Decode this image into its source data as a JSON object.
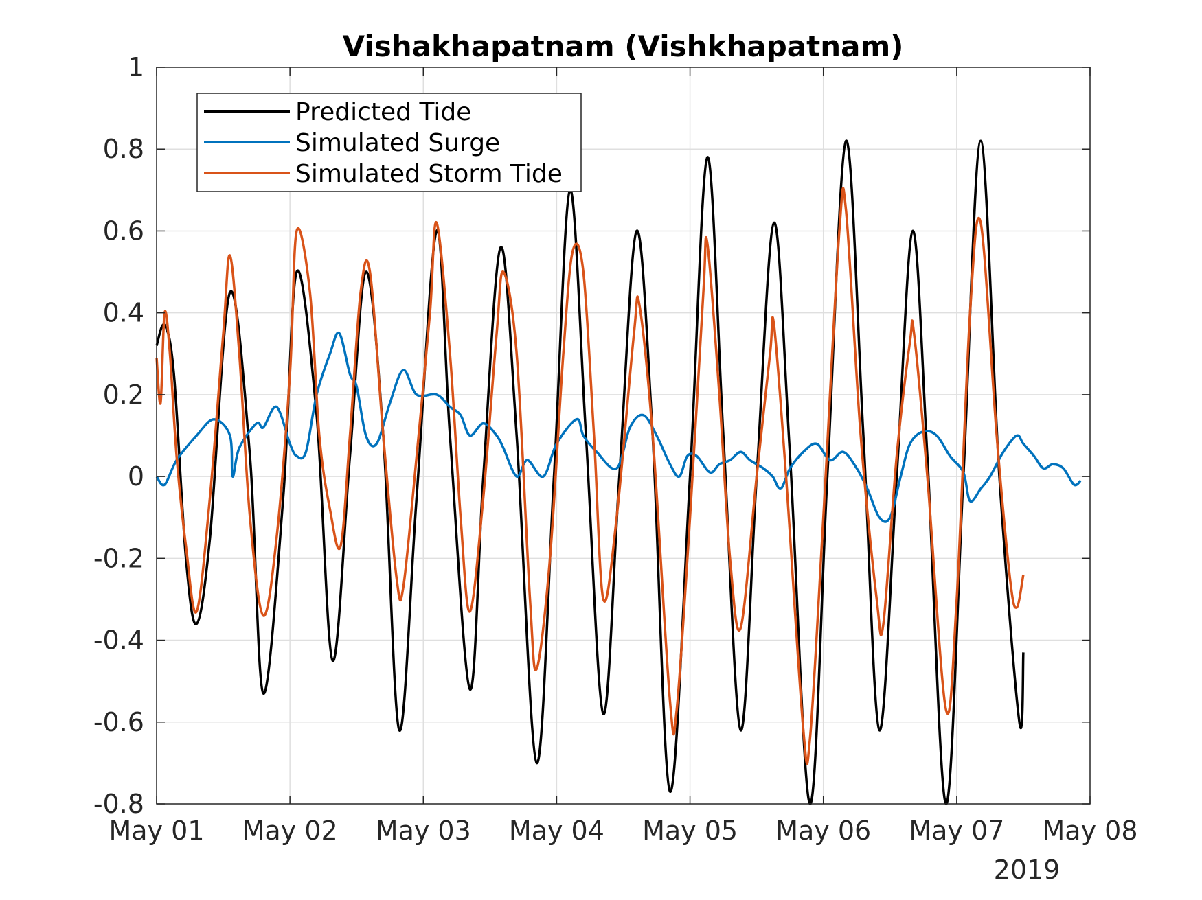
{
  "chart_data": {
    "type": "line",
    "title": "Vishakhapatnam (Vishkhapatnam)",
    "xlabel": "",
    "ylabel": "",
    "x_tick_labels": [
      "May 01",
      "May 02",
      "May 03",
      "May 04",
      "May 05",
      "May 06",
      "May 07",
      "May 08"
    ],
    "x_secondary_label": "2019",
    "x_range_days": [
      0,
      7
    ],
    "ylim": [
      -0.8,
      1
    ],
    "y_ticks": [
      -0.8,
      -0.6,
      -0.4,
      -0.2,
      0,
      0.2,
      0.4,
      0.6,
      0.8,
      1
    ],
    "y_tick_labels": [
      "-0.8",
      "-0.6",
      "-0.4",
      "-0.2",
      "0",
      "0.2",
      "0.4",
      "0.6",
      "0.8",
      "1"
    ],
    "grid": true,
    "legend_position": "top-left",
    "series": [
      {
        "name": "Predicted Tide",
        "color": "#000000",
        "points": [
          [
            0.0,
            0.32
          ],
          [
            0.06,
            0.37
          ],
          [
            0.13,
            0.25
          ],
          [
            0.22,
            -0.2
          ],
          [
            0.3,
            -0.36
          ],
          [
            0.4,
            -0.15
          ],
          [
            0.55,
            0.45
          ],
          [
            0.7,
            0.05
          ],
          [
            0.8,
            -0.53
          ],
          [
            0.95,
            -0.05
          ],
          [
            1.05,
            0.5
          ],
          [
            1.2,
            0.15
          ],
          [
            1.32,
            -0.45
          ],
          [
            1.45,
            0.05
          ],
          [
            1.57,
            0.5
          ],
          [
            1.7,
            0.1
          ],
          [
            1.82,
            -0.62
          ],
          [
            1.95,
            -0.05
          ],
          [
            2.1,
            0.6
          ],
          [
            2.2,
            0.1
          ],
          [
            2.35,
            -0.52
          ],
          [
            2.45,
            0.0
          ],
          [
            2.58,
            0.56
          ],
          [
            2.7,
            0.1
          ],
          [
            2.85,
            -0.7
          ],
          [
            2.98,
            0.0
          ],
          [
            3.1,
            0.7
          ],
          [
            3.22,
            0.1
          ],
          [
            3.35,
            -0.58
          ],
          [
            3.47,
            0.0
          ],
          [
            3.6,
            0.6
          ],
          [
            3.72,
            0.1
          ],
          [
            3.85,
            -0.77
          ],
          [
            4.0,
            0.0
          ],
          [
            4.13,
            0.78
          ],
          [
            4.25,
            0.1
          ],
          [
            4.38,
            -0.62
          ],
          [
            4.5,
            0.0
          ],
          [
            4.63,
            0.62
          ],
          [
            4.75,
            0.05
          ],
          [
            4.9,
            -0.8
          ],
          [
            5.03,
            0.0
          ],
          [
            5.17,
            0.82
          ],
          [
            5.3,
            0.1
          ],
          [
            5.42,
            -0.62
          ],
          [
            5.55,
            0.0
          ],
          [
            5.67,
            0.6
          ],
          [
            5.78,
            0.05
          ],
          [
            5.92,
            -0.8
          ],
          [
            6.05,
            0.0
          ],
          [
            6.18,
            0.82
          ],
          [
            6.32,
            0.0
          ],
          [
            6.47,
            -0.6
          ],
          [
            6.5,
            -0.43
          ]
        ]
      },
      {
        "name": "Simulated Surge",
        "color": "#0072BD",
        "points": [
          [
            0.0,
            0.0
          ],
          [
            0.06,
            -0.02
          ],
          [
            0.15,
            0.04
          ],
          [
            0.3,
            0.1
          ],
          [
            0.43,
            0.14
          ],
          [
            0.55,
            0.1
          ],
          [
            0.57,
            0.0
          ],
          [
            0.62,
            0.07
          ],
          [
            0.75,
            0.13
          ],
          [
            0.8,
            0.12
          ],
          [
            0.9,
            0.17
          ],
          [
            1.0,
            0.08
          ],
          [
            1.05,
            0.05
          ],
          [
            1.12,
            0.06
          ],
          [
            1.2,
            0.2
          ],
          [
            1.3,
            0.3
          ],
          [
            1.37,
            0.35
          ],
          [
            1.45,
            0.25
          ],
          [
            1.5,
            0.22
          ],
          [
            1.57,
            0.1
          ],
          [
            1.65,
            0.08
          ],
          [
            1.75,
            0.18
          ],
          [
            1.85,
            0.26
          ],
          [
            1.95,
            0.2
          ],
          [
            2.1,
            0.2
          ],
          [
            2.2,
            0.17
          ],
          [
            2.28,
            0.15
          ],
          [
            2.35,
            0.1
          ],
          [
            2.45,
            0.13
          ],
          [
            2.55,
            0.1
          ],
          [
            2.6,
            0.07
          ],
          [
            2.7,
            0.0
          ],
          [
            2.78,
            0.04
          ],
          [
            2.9,
            0.0
          ],
          [
            3.0,
            0.08
          ],
          [
            3.15,
            0.14
          ],
          [
            3.2,
            0.1
          ],
          [
            3.3,
            0.06
          ],
          [
            3.45,
            0.02
          ],
          [
            3.55,
            0.12
          ],
          [
            3.65,
            0.15
          ],
          [
            3.75,
            0.1
          ],
          [
            3.85,
            0.03
          ],
          [
            3.92,
            0.0
          ],
          [
            3.98,
            0.05
          ],
          [
            4.05,
            0.05
          ],
          [
            4.15,
            0.01
          ],
          [
            4.22,
            0.03
          ],
          [
            4.3,
            0.04
          ],
          [
            4.38,
            0.06
          ],
          [
            4.45,
            0.04
          ],
          [
            4.55,
            0.02
          ],
          [
            4.62,
            0.0
          ],
          [
            4.68,
            -0.03
          ],
          [
            4.75,
            0.02
          ],
          [
            4.85,
            0.06
          ],
          [
            4.95,
            0.08
          ],
          [
            5.05,
            0.04
          ],
          [
            5.15,
            0.06
          ],
          [
            5.25,
            0.02
          ],
          [
            5.33,
            -0.03
          ],
          [
            5.42,
            -0.1
          ],
          [
            5.5,
            -0.1
          ],
          [
            5.58,
            0.0
          ],
          [
            5.65,
            0.08
          ],
          [
            5.75,
            0.11
          ],
          [
            5.85,
            0.1
          ],
          [
            5.95,
            0.05
          ],
          [
            6.05,
            0.01
          ],
          [
            6.1,
            -0.06
          ],
          [
            6.18,
            -0.03
          ],
          [
            6.25,
            0.0
          ],
          [
            6.35,
            0.06
          ],
          [
            6.45,
            0.1
          ],
          [
            6.5,
            0.08
          ],
          [
            6.58,
            0.05
          ],
          [
            6.65,
            0.02
          ],
          [
            6.72,
            0.03
          ],
          [
            6.8,
            0.02
          ],
          [
            6.88,
            -0.02
          ],
          [
            6.93,
            -0.01
          ]
        ]
      },
      {
        "name": "Simulated Storm Tide",
        "color": "#D95319",
        "points": [
          [
            0.0,
            0.29
          ],
          [
            0.03,
            0.18
          ],
          [
            0.06,
            0.4
          ],
          [
            0.1,
            0.3
          ],
          [
            0.15,
            0.05
          ],
          [
            0.22,
            -0.17
          ],
          [
            0.3,
            -0.33
          ],
          [
            0.4,
            -0.05
          ],
          [
            0.5,
            0.35
          ],
          [
            0.55,
            0.54
          ],
          [
            0.62,
            0.3
          ],
          [
            0.7,
            -0.1
          ],
          [
            0.8,
            -0.34
          ],
          [
            0.9,
            -0.15
          ],
          [
            1.0,
            0.25
          ],
          [
            1.05,
            0.6
          ],
          [
            1.15,
            0.45
          ],
          [
            1.22,
            0.1
          ],
          [
            1.3,
            -0.08
          ],
          [
            1.38,
            -0.17
          ],
          [
            1.45,
            0.1
          ],
          [
            1.53,
            0.45
          ],
          [
            1.6,
            0.5
          ],
          [
            1.7,
            0.1
          ],
          [
            1.8,
            -0.25
          ],
          [
            1.85,
            -0.27
          ],
          [
            1.95,
            0.05
          ],
          [
            2.05,
            0.4
          ],
          [
            2.1,
            0.62
          ],
          [
            2.2,
            0.3
          ],
          [
            2.28,
            -0.1
          ],
          [
            2.35,
            -0.33
          ],
          [
            2.45,
            -0.05
          ],
          [
            2.55,
            0.35
          ],
          [
            2.6,
            0.5
          ],
          [
            2.7,
            0.3
          ],
          [
            2.8,
            -0.3
          ],
          [
            2.85,
            -0.47
          ],
          [
            2.95,
            -0.2
          ],
          [
            3.05,
            0.3
          ],
          [
            3.12,
            0.55
          ],
          [
            3.2,
            0.5
          ],
          [
            3.28,
            0.1
          ],
          [
            3.35,
            -0.3
          ],
          [
            3.45,
            -0.1
          ],
          [
            3.58,
            0.35
          ],
          [
            3.62,
            0.42
          ],
          [
            3.72,
            0.1
          ],
          [
            3.85,
            -0.55
          ],
          [
            3.9,
            -0.57
          ],
          [
            4.0,
            -0.1
          ],
          [
            4.1,
            0.45
          ],
          [
            4.13,
            0.57
          ],
          [
            4.22,
            0.2
          ],
          [
            4.3,
            -0.2
          ],
          [
            4.38,
            -0.37
          ],
          [
            4.5,
            0.0
          ],
          [
            4.6,
            0.3
          ],
          [
            4.63,
            0.37
          ],
          [
            4.72,
            0.0
          ],
          [
            4.85,
            -0.62
          ],
          [
            4.9,
            -0.64
          ],
          [
            5.0,
            -0.1
          ],
          [
            5.12,
            0.6
          ],
          [
            5.17,
            0.65
          ],
          [
            5.28,
            0.1
          ],
          [
            5.4,
            -0.3
          ],
          [
            5.45,
            -0.36
          ],
          [
            5.55,
            0.05
          ],
          [
            5.65,
            0.33
          ],
          [
            5.68,
            0.35
          ],
          [
            5.78,
            0.0
          ],
          [
            5.92,
            -0.57
          ],
          [
            6.0,
            -0.3
          ],
          [
            6.1,
            0.4
          ],
          [
            6.18,
            0.62
          ],
          [
            6.3,
            0.1
          ],
          [
            6.4,
            -0.25
          ],
          [
            6.45,
            -0.32
          ],
          [
            6.5,
            -0.24
          ]
        ]
      }
    ]
  }
}
